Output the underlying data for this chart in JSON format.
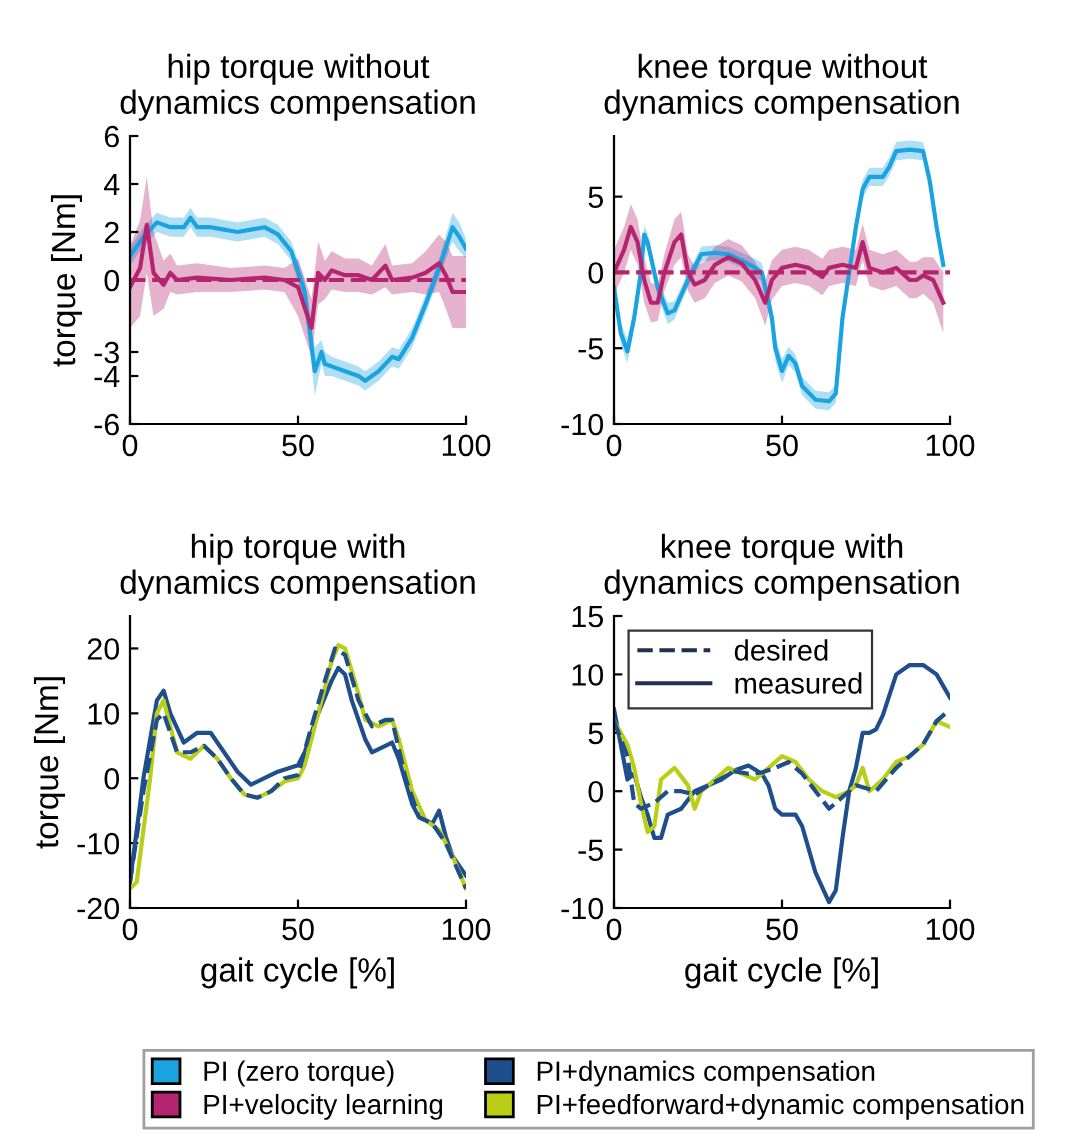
{
  "chart_data": [
    {
      "type": "line",
      "title": "hip torque without\ndynamics compensation",
      "ylabel": "torque [Nm]",
      "xlim": [
        0,
        100
      ],
      "xticks": [
        0,
        50,
        100
      ],
      "ylim": [
        -6,
        6
      ],
      "yticks": [
        -6,
        -4,
        -3,
        0,
        2,
        4,
        6
      ],
      "legend": "bottom",
      "series": [
        {
          "name": "PI (zero torque)",
          "color": "#1ba3e0",
          "x": [
            0,
            4,
            8,
            12,
            16,
            18,
            20,
            24,
            28,
            32,
            36,
            40,
            44,
            48,
            52,
            55,
            57,
            58,
            60,
            64,
            68,
            70,
            74,
            78,
            80,
            84,
            88,
            92,
            96,
            98,
            100
          ],
          "values": [
            1.0,
            1.8,
            2.4,
            2.2,
            2.2,
            2.6,
            2.2,
            2.2,
            2.1,
            2.0,
            2.1,
            2.2,
            1.9,
            1.2,
            -0.5,
            -3.8,
            -3.0,
            -3.5,
            -3.6,
            -3.8,
            -4.0,
            -4.2,
            -3.8,
            -3.2,
            -3.3,
            -2.4,
            -1.0,
            0.5,
            2.2,
            1.8,
            1.3
          ],
          "lower": [
            0.6,
            1.4,
            2.0,
            1.8,
            1.8,
            2.2,
            1.8,
            1.8,
            1.7,
            1.6,
            1.7,
            1.8,
            1.5,
            0.8,
            -1.0,
            -4.8,
            -3.5,
            -4.0,
            -4.0,
            -4.2,
            -4.4,
            -4.6,
            -4.2,
            -3.6,
            -3.7,
            -2.8,
            -1.4,
            0.1,
            1.6,
            1.2,
            0.9
          ],
          "upper": [
            1.4,
            2.2,
            2.8,
            2.6,
            2.6,
            3.0,
            2.6,
            2.6,
            2.5,
            2.4,
            2.5,
            2.6,
            2.3,
            1.6,
            0.0,
            -2.8,
            -2.5,
            -3.0,
            -3.2,
            -3.4,
            -3.6,
            -3.8,
            -3.4,
            -2.8,
            -2.9,
            -2.0,
            -0.6,
            0.9,
            2.8,
            2.4,
            1.7
          ]
        },
        {
          "name": "PI+velocity learning",
          "color": "#b5256f",
          "x": [
            0,
            3,
            5,
            7,
            10,
            12,
            14,
            20,
            30,
            40,
            46,
            50,
            54,
            56,
            58,
            60,
            64,
            68,
            72,
            76,
            78,
            84,
            88,
            92,
            94,
            96,
            100
          ],
          "values": [
            -0.3,
            0.5,
            2.3,
            0.3,
            -0.2,
            0.3,
            0.0,
            0.1,
            0.0,
            0.1,
            0.0,
            -0.3,
            -2.0,
            0.3,
            0.0,
            0.4,
            0.2,
            0.2,
            0.0,
            0.6,
            0.0,
            0.1,
            0.3,
            0.7,
            0.2,
            -0.5,
            -0.5
          ],
          "lower": [
            -2.0,
            -1.5,
            0.3,
            -1.5,
            -1.2,
            -0.5,
            -0.6,
            -0.5,
            -0.5,
            -0.4,
            -0.5,
            -1.5,
            -3.2,
            -1.0,
            -0.8,
            -0.4,
            -0.5,
            -0.5,
            -0.6,
            -0.3,
            -0.6,
            -0.5,
            -0.6,
            -0.5,
            -1.2,
            -2.0,
            -2.0
          ],
          "upper": [
            1.4,
            2.5,
            4.3,
            2.0,
            0.8,
            1.1,
            0.6,
            0.7,
            0.5,
            0.6,
            0.5,
            0.9,
            -0.8,
            1.6,
            0.8,
            1.2,
            0.9,
            0.9,
            0.6,
            1.5,
            0.6,
            0.7,
            1.2,
            1.9,
            1.6,
            1.0,
            1.0
          ]
        },
        {
          "color": "#b5256f",
          "line_style": "dashed",
          "x": [
            0,
            100
          ],
          "values": [
            0,
            0
          ]
        }
      ]
    },
    {
      "type": "line",
      "title": "knee torque without\ndynamics compensation",
      "xlim": [
        0,
        100
      ],
      "xticks": [
        0,
        50,
        100
      ],
      "ylim": [
        -10,
        9
      ],
      "yticks": [
        -10,
        -5,
        0,
        5
      ],
      "series": [
        {
          "color": "#1ba3e0",
          "x": [
            0,
            2,
            4,
            6,
            8,
            9,
            10,
            13,
            16,
            18,
            22,
            26,
            30,
            34,
            38,
            42,
            44,
            47,
            48,
            50,
            52,
            54,
            56,
            60,
            64,
            66,
            68,
            70,
            72,
            74,
            76,
            80,
            82,
            84,
            88,
            92,
            94,
            96,
            98
          ],
          "values": [
            -1,
            -4,
            -5.2,
            -3,
            0,
            2.5,
            2.0,
            -1,
            -2.7,
            -2.5,
            -0.5,
            1.2,
            1.3,
            1.2,
            0.8,
            0.3,
            0,
            -3,
            -5,
            -6.5,
            -5.5,
            -6.0,
            -7.5,
            -8.4,
            -8.5,
            -8.0,
            -3,
            0,
            3,
            5.5,
            6.3,
            6.3,
            7.0,
            8,
            8.1,
            8.0,
            6,
            3,
            0.5
          ],
          "lower": [
            -1.5,
            -4.7,
            -6.0,
            -3.6,
            -0.6,
            1.9,
            1.4,
            -1.6,
            -3.4,
            -3.1,
            -1.0,
            0.7,
            0.8,
            0.7,
            0.3,
            -0.3,
            -0.6,
            -3.8,
            -5.8,
            -7.3,
            -6.1,
            -6.6,
            -8.1,
            -9.0,
            -9.1,
            -8.6,
            -3.6,
            -0.6,
            2.4,
            4.9,
            5.7,
            5.7,
            6.4,
            7.4,
            7.5,
            7.4,
            5.4,
            2.4,
            -0.1
          ],
          "upper": [
            -0.5,
            -3.3,
            -4.4,
            -2.4,
            0.6,
            3.1,
            2.6,
            -0.4,
            -2.0,
            -1.9,
            0.0,
            1.7,
            1.8,
            1.7,
            1.3,
            0.9,
            0.6,
            -2.2,
            -4.2,
            -5.7,
            -4.9,
            -5.4,
            -6.9,
            -7.8,
            -7.9,
            -7.4,
            -2.4,
            0.6,
            3.6,
            6.1,
            6.9,
            6.9,
            7.6,
            8.6,
            8.7,
            8.6,
            6.6,
            3.6,
            1.1
          ]
        },
        {
          "color": "#b5256f",
          "x": [
            0,
            3,
            5,
            7,
            9,
            11,
            13,
            15,
            18,
            20,
            22,
            24,
            27,
            30,
            34,
            38,
            42,
            45,
            47,
            50,
            54,
            58,
            62,
            64,
            68,
            72,
            74,
            76,
            80,
            84,
            88,
            90,
            92,
            95,
            98
          ],
          "values": [
            0,
            1.5,
            3.0,
            2.0,
            -0.5,
            -2,
            -2,
            0,
            2,
            2.5,
            0,
            -0.8,
            -0.5,
            0.5,
            1.0,
            0.6,
            -0.5,
            -2,
            -0.5,
            0.3,
            0.5,
            0.3,
            -0.3,
            0.3,
            0.5,
            0.3,
            2.0,
            0.3,
            0,
            0.3,
            -0.5,
            -0.5,
            -0.2,
            -0.5,
            -2
          ],
          "lower": [
            -1.5,
            0.0,
            1.5,
            0.5,
            -2.0,
            -3.3,
            -3.2,
            -1.2,
            0.5,
            1.0,
            -1.2,
            -2.0,
            -1.7,
            -0.7,
            -0.2,
            -0.6,
            -1.7,
            -3.5,
            -1.8,
            -0.9,
            -0.7,
            -0.9,
            -1.5,
            -0.9,
            -0.7,
            -0.9,
            0.8,
            -0.9,
            -1.2,
            -0.9,
            -1.7,
            -1.7,
            -1.4,
            -2.0,
            -4.0
          ],
          "upper": [
            1.5,
            3.0,
            4.5,
            3.5,
            1.0,
            -0.7,
            -0.8,
            1.2,
            3.5,
            4.0,
            1.2,
            0.4,
            0.7,
            1.7,
            2.2,
            1.8,
            0.7,
            -0.5,
            0.8,
            1.5,
            1.7,
            1.5,
            0.9,
            1.5,
            1.7,
            1.5,
            3.2,
            1.5,
            1.2,
            1.5,
            0.7,
            0.7,
            1.0,
            1.0,
            0.0
          ]
        },
        {
          "color": "#b5256f",
          "line_style": "dashed",
          "x": [
            0,
            100
          ],
          "values": [
            0,
            0
          ]
        }
      ]
    },
    {
      "type": "line",
      "title": "hip torque with\ndynamics compensation",
      "ylabel": "torque [Nm]",
      "xlabel": "gait cycle [%]",
      "xlim": [
        0,
        100
      ],
      "xticks": [
        0,
        50,
        100
      ],
      "ylim": [
        -20,
        25
      ],
      "yticks": [
        -20,
        -10,
        0,
        10,
        20
      ],
      "legend": "bottom",
      "series": [
        {
          "name": "PI+dynamics compensation",
          "color": "#1f4e8c",
          "x": [
            0,
            4,
            8,
            10,
            12,
            16,
            20,
            24,
            28,
            32,
            36,
            40,
            44,
            50,
            52,
            56,
            60,
            62,
            64,
            66,
            70,
            72,
            76,
            78,
            80,
            84,
            86,
            88,
            90,
            92,
            94,
            96,
            100
          ],
          "values": [
            -16,
            0,
            12,
            13.5,
            10,
            5.5,
            7,
            7,
            4,
            1,
            -1,
            0,
            1,
            2,
            4,
            10,
            15,
            17,
            16,
            12,
            6,
            4,
            5,
            5.5,
            3,
            -4,
            -6,
            -6.5,
            -7,
            -5,
            -9,
            -12,
            -15
          ]
        },
        {
          "name": "PI+feedforward+dynamic compensation",
          "color": "#b8cf16",
          "x": [
            0,
            2,
            6,
            8,
            10,
            14,
            18,
            22,
            26,
            30,
            34,
            38,
            42,
            46,
            50,
            52,
            56,
            60,
            62,
            64,
            68,
            70,
            74,
            78,
            80,
            84,
            88,
            92,
            96,
            100
          ],
          "values": [
            -17,
            -16,
            0,
            10,
            12,
            4,
            3,
            5,
            3,
            0,
            -2.5,
            -3,
            -2,
            -0.5,
            0,
            2,
            10,
            18,
            20.5,
            20,
            13,
            9,
            8,
            9,
            6,
            -2,
            -6.5,
            -8,
            -12,
            -17
          ]
        },
        {
          "color": "#1f4e8c",
          "line_style": "dashed",
          "x": [
            0,
            4,
            8,
            10,
            14,
            18,
            22,
            26,
            30,
            34,
            38,
            42,
            46,
            50,
            54,
            58,
            61,
            64,
            68,
            72,
            76,
            78,
            82,
            86,
            90,
            94,
            100
          ],
          "values": [
            -16,
            -2,
            9,
            10,
            4,
            4,
            5,
            3,
            0,
            -2.5,
            -3,
            -2,
            0,
            0.5,
            8,
            15,
            20,
            19,
            12,
            8,
            9,
            9,
            0,
            -6,
            -7,
            -10,
            -17
          ]
        }
      ]
    },
    {
      "type": "line",
      "title": "knee torque with\ndynamics compensation",
      "xlabel": "gait cycle [%]",
      "xlim": [
        0,
        100
      ],
      "xticks": [
        0,
        50,
        100
      ],
      "ylim": [
        -10,
        15
      ],
      "yticks": [
        -10,
        -5,
        0,
        5,
        10,
        15
      ],
      "legend": "top left",
      "annotations": [
        "measured"
      ],
      "series": [
        {
          "color": "#1f4e8c",
          "x": [
            0,
            2,
            4,
            6,
            8,
            10,
            12,
            14,
            16,
            20,
            24,
            28,
            32,
            36,
            40,
            44,
            46,
            48,
            50,
            54,
            56,
            60,
            64,
            66,
            68,
            70,
            72,
            74,
            76,
            78,
            80,
            84,
            88,
            92,
            96,
            100
          ],
          "values": [
            7,
            4,
            1,
            1.5,
            -0.5,
            -2,
            -4,
            -4,
            -2,
            -1.5,
            0,
            0.5,
            1,
            1.8,
            2.2,
            1.5,
            0.5,
            -1.5,
            -2,
            -2,
            -3,
            -7,
            -9.5,
            -8.5,
            -4,
            0,
            2,
            5,
            5,
            5.3,
            6.5,
            10,
            10.8,
            10.8,
            10,
            8
          ]
        },
        {
          "color": "#b8cf16",
          "x": [
            0,
            4,
            6,
            8,
            10,
            12,
            14,
            18,
            22,
            24,
            26,
            30,
            34,
            38,
            42,
            46,
            50,
            54,
            58,
            62,
            66,
            70,
            72,
            74,
            76,
            80,
            84,
            88,
            92,
            96,
            100
          ],
          "values": [
            6,
            4,
            2,
            -1,
            -3.5,
            -3,
            1,
            2,
            0.5,
            -1.5,
            0,
            1,
            2,
            1.5,
            1,
            2,
            3,
            2.5,
            1,
            0,
            -0.5,
            0,
            0.5,
            2,
            0,
            1,
            2.5,
            3,
            4,
            6,
            5.5
          ]
        },
        {
          "name": "desired",
          "color": "#1f4e8c",
          "line_style": "dashed",
          "x": [
            0,
            4,
            6,
            8,
            12,
            16,
            20,
            24,
            28,
            36,
            40,
            44,
            48,
            52,
            56,
            60,
            64,
            68,
            72,
            78,
            84,
            88,
            92,
            96,
            100
          ],
          "values": [
            6,
            3,
            -1,
            -1.5,
            -1,
            0,
            0,
            -0.3,
            0.5,
            1.7,
            1.5,
            1.6,
            2,
            2.5,
            1.5,
            0,
            -1.5,
            -0.5,
            0.5,
            0,
            2,
            3,
            4,
            6,
            7
          ]
        }
      ]
    }
  ]
}
